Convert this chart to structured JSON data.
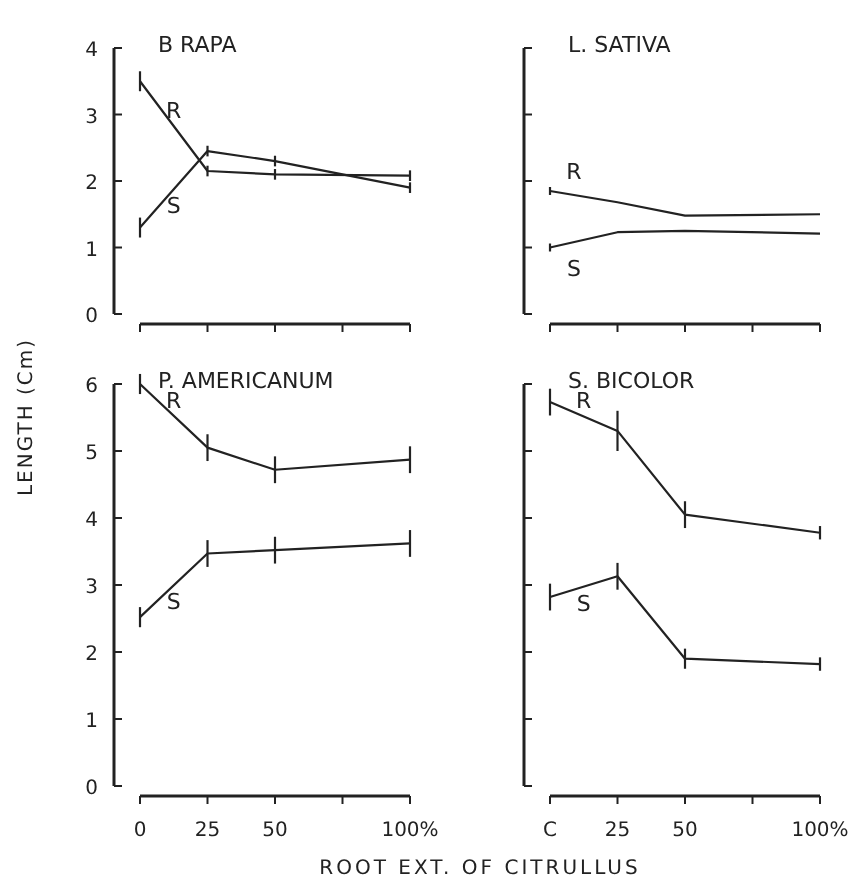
{
  "chart_data": [
    {
      "type": "line",
      "title": "B RAPA",
      "ylabel": "LENGTH (Cm)",
      "x": [
        0,
        25,
        50,
        100
      ],
      "xlim": [
        0,
        100
      ],
      "xticks": [
        0,
        25,
        50,
        75,
        100
      ],
      "ylim": [
        0,
        4
      ],
      "yticks": [
        0,
        1,
        2,
        3,
        4
      ],
      "tick_labels": "y",
      "marker": "none",
      "line_style": "solid",
      "grid": false,
      "series": [
        {
          "name": "R",
          "color": "#222222",
          "values": [
            3.5,
            2.15,
            2.1,
            2.08
          ],
          "errors": [
            0.15,
            0.08,
            0.08,
            0.08
          ]
        },
        {
          "name": "S",
          "color": "#222222",
          "values": [
            1.3,
            2.45,
            2.3,
            1.9
          ],
          "errors": [
            0.15,
            0.08,
            0.08,
            0.08
          ]
        }
      ]
    },
    {
      "type": "line",
      "title": "L. SATIVA",
      "x": [
        0,
        25,
        50,
        100
      ],
      "xlim": [
        0,
        100
      ],
      "xticks": [
        0,
        25,
        50,
        75,
        100
      ],
      "ylim": [
        0,
        4
      ],
      "yticks": [
        0,
        1,
        2,
        3,
        4
      ],
      "tick_labels": false,
      "marker": "none",
      "line_style": "solid",
      "grid": false,
      "legend": "left",
      "series": [
        {
          "name": "R",
          "color": "#222222",
          "values": [
            1.85,
            1.68,
            1.48,
            1.5
          ],
          "errors": [
            0.06,
            null,
            null,
            null
          ]
        },
        {
          "name": "S",
          "color": "#222222",
          "values": [
            1.0,
            1.23,
            1.25,
            1.21
          ],
          "errors": [
            0.06,
            null,
            null,
            null
          ]
        }
      ]
    },
    {
      "type": "line",
      "title": "P. AMERICANUM",
      "xlabel": "ROOT EXT. OF CITRULLUS",
      "x": [
        0,
        25,
        50,
        100
      ],
      "xlim": [
        0,
        100
      ],
      "xticks": [
        0,
        25,
        50,
        {
          "value": 75,
          "label": null
        },
        {
          "value": 100,
          "label": "100%"
        }
      ],
      "ylim": [
        0,
        6
      ],
      "yticks": [
        0,
        1,
        2,
        3,
        4,
        5,
        6
      ],
      "marker": "none",
      "line_style": "solid",
      "grid": false,
      "series": [
        {
          "name": "R",
          "color": "#222222",
          "values": [
            6.0,
            5.05,
            4.72,
            4.87
          ],
          "errors": [
            0.15,
            0.2,
            0.2,
            0.2
          ]
        },
        {
          "name": "S",
          "color": "#222222",
          "values": [
            2.52,
            3.47,
            3.52,
            3.62
          ],
          "errors": [
            0.15,
            0.2,
            0.2,
            0.2
          ]
        }
      ]
    },
    {
      "type": "line",
      "title": "S. BICOLOR",
      "x": [
        0,
        25,
        50,
        100
      ],
      "xlim": [
        0,
        100
      ],
      "xticks": [
        {
          "value": 0,
          "label": "C"
        },
        25,
        50,
        {
          "value": 75,
          "label": null
        },
        {
          "value": 100,
          "label": "100%"
        }
      ],
      "ylim": [
        0,
        6
      ],
      "yticks": [
        0,
        1,
        2,
        3,
        4,
        5,
        6
      ],
      "tick_labels": "x",
      "marker": "none",
      "line_style": "solid",
      "grid": false,
      "series": [
        {
          "name": "R",
          "color": "#222222",
          "values": [
            5.73,
            5.3,
            4.05,
            3.78
          ],
          "errors": [
            0.2,
            0.3,
            0.2,
            0.1
          ]
        },
        {
          "name": "S",
          "color": "#222222",
          "values": [
            2.82,
            3.13,
            1.9,
            1.82
          ],
          "errors": [
            0.2,
            0.2,
            0.15,
            0.1
          ]
        }
      ]
    }
  ]
}
